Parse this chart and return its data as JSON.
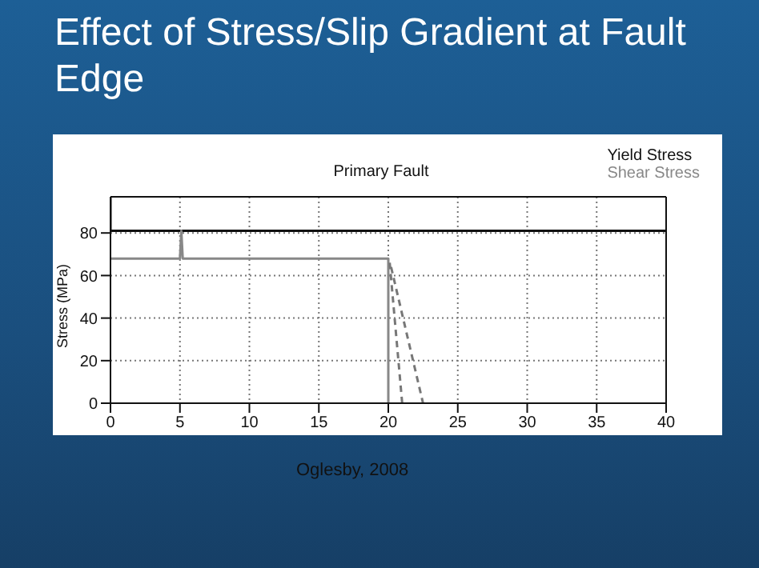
{
  "chart_data": {
    "type": "line",
    "title": "Effect of Stress/Slip Gradient at Fault Edge",
    "subtitle": "Primary Fault",
    "ylabel": "Stress (MPa)",
    "xlim": [
      0,
      40
    ],
    "xticks": [
      0,
      5,
      10,
      15,
      20,
      25,
      30,
      35,
      40
    ],
    "ylim": [
      0,
      97
    ],
    "yticks": [
      0,
      20,
      40,
      60,
      80
    ],
    "grid": true,
    "legend": "top right",
    "marker": "none",
    "line_style": "solid",
    "annotations": [
      "Oglesby, 2008"
    ],
    "series": [
      {
        "name": "Yield Stress",
        "color": "#111111",
        "x": [
          0,
          0,
          40
        ],
        "values": [
          97,
          81,
          81
        ]
      },
      {
        "name": "Shear Stress",
        "color": "#888888",
        "x": [
          0,
          5,
          5.1,
          5.2,
          20,
          20
        ],
        "values": [
          68,
          68,
          81,
          68,
          68,
          0
        ]
      },
      {
        "color": "#777777",
        "line_style": "dashed",
        "x": [
          20.1,
          21
        ],
        "values": [
          66,
          0
        ]
      },
      {
        "color": "#777777",
        "line_style": "dashed",
        "x": [
          20.2,
          22.5
        ],
        "values": [
          64,
          0
        ]
      }
    ]
  }
}
